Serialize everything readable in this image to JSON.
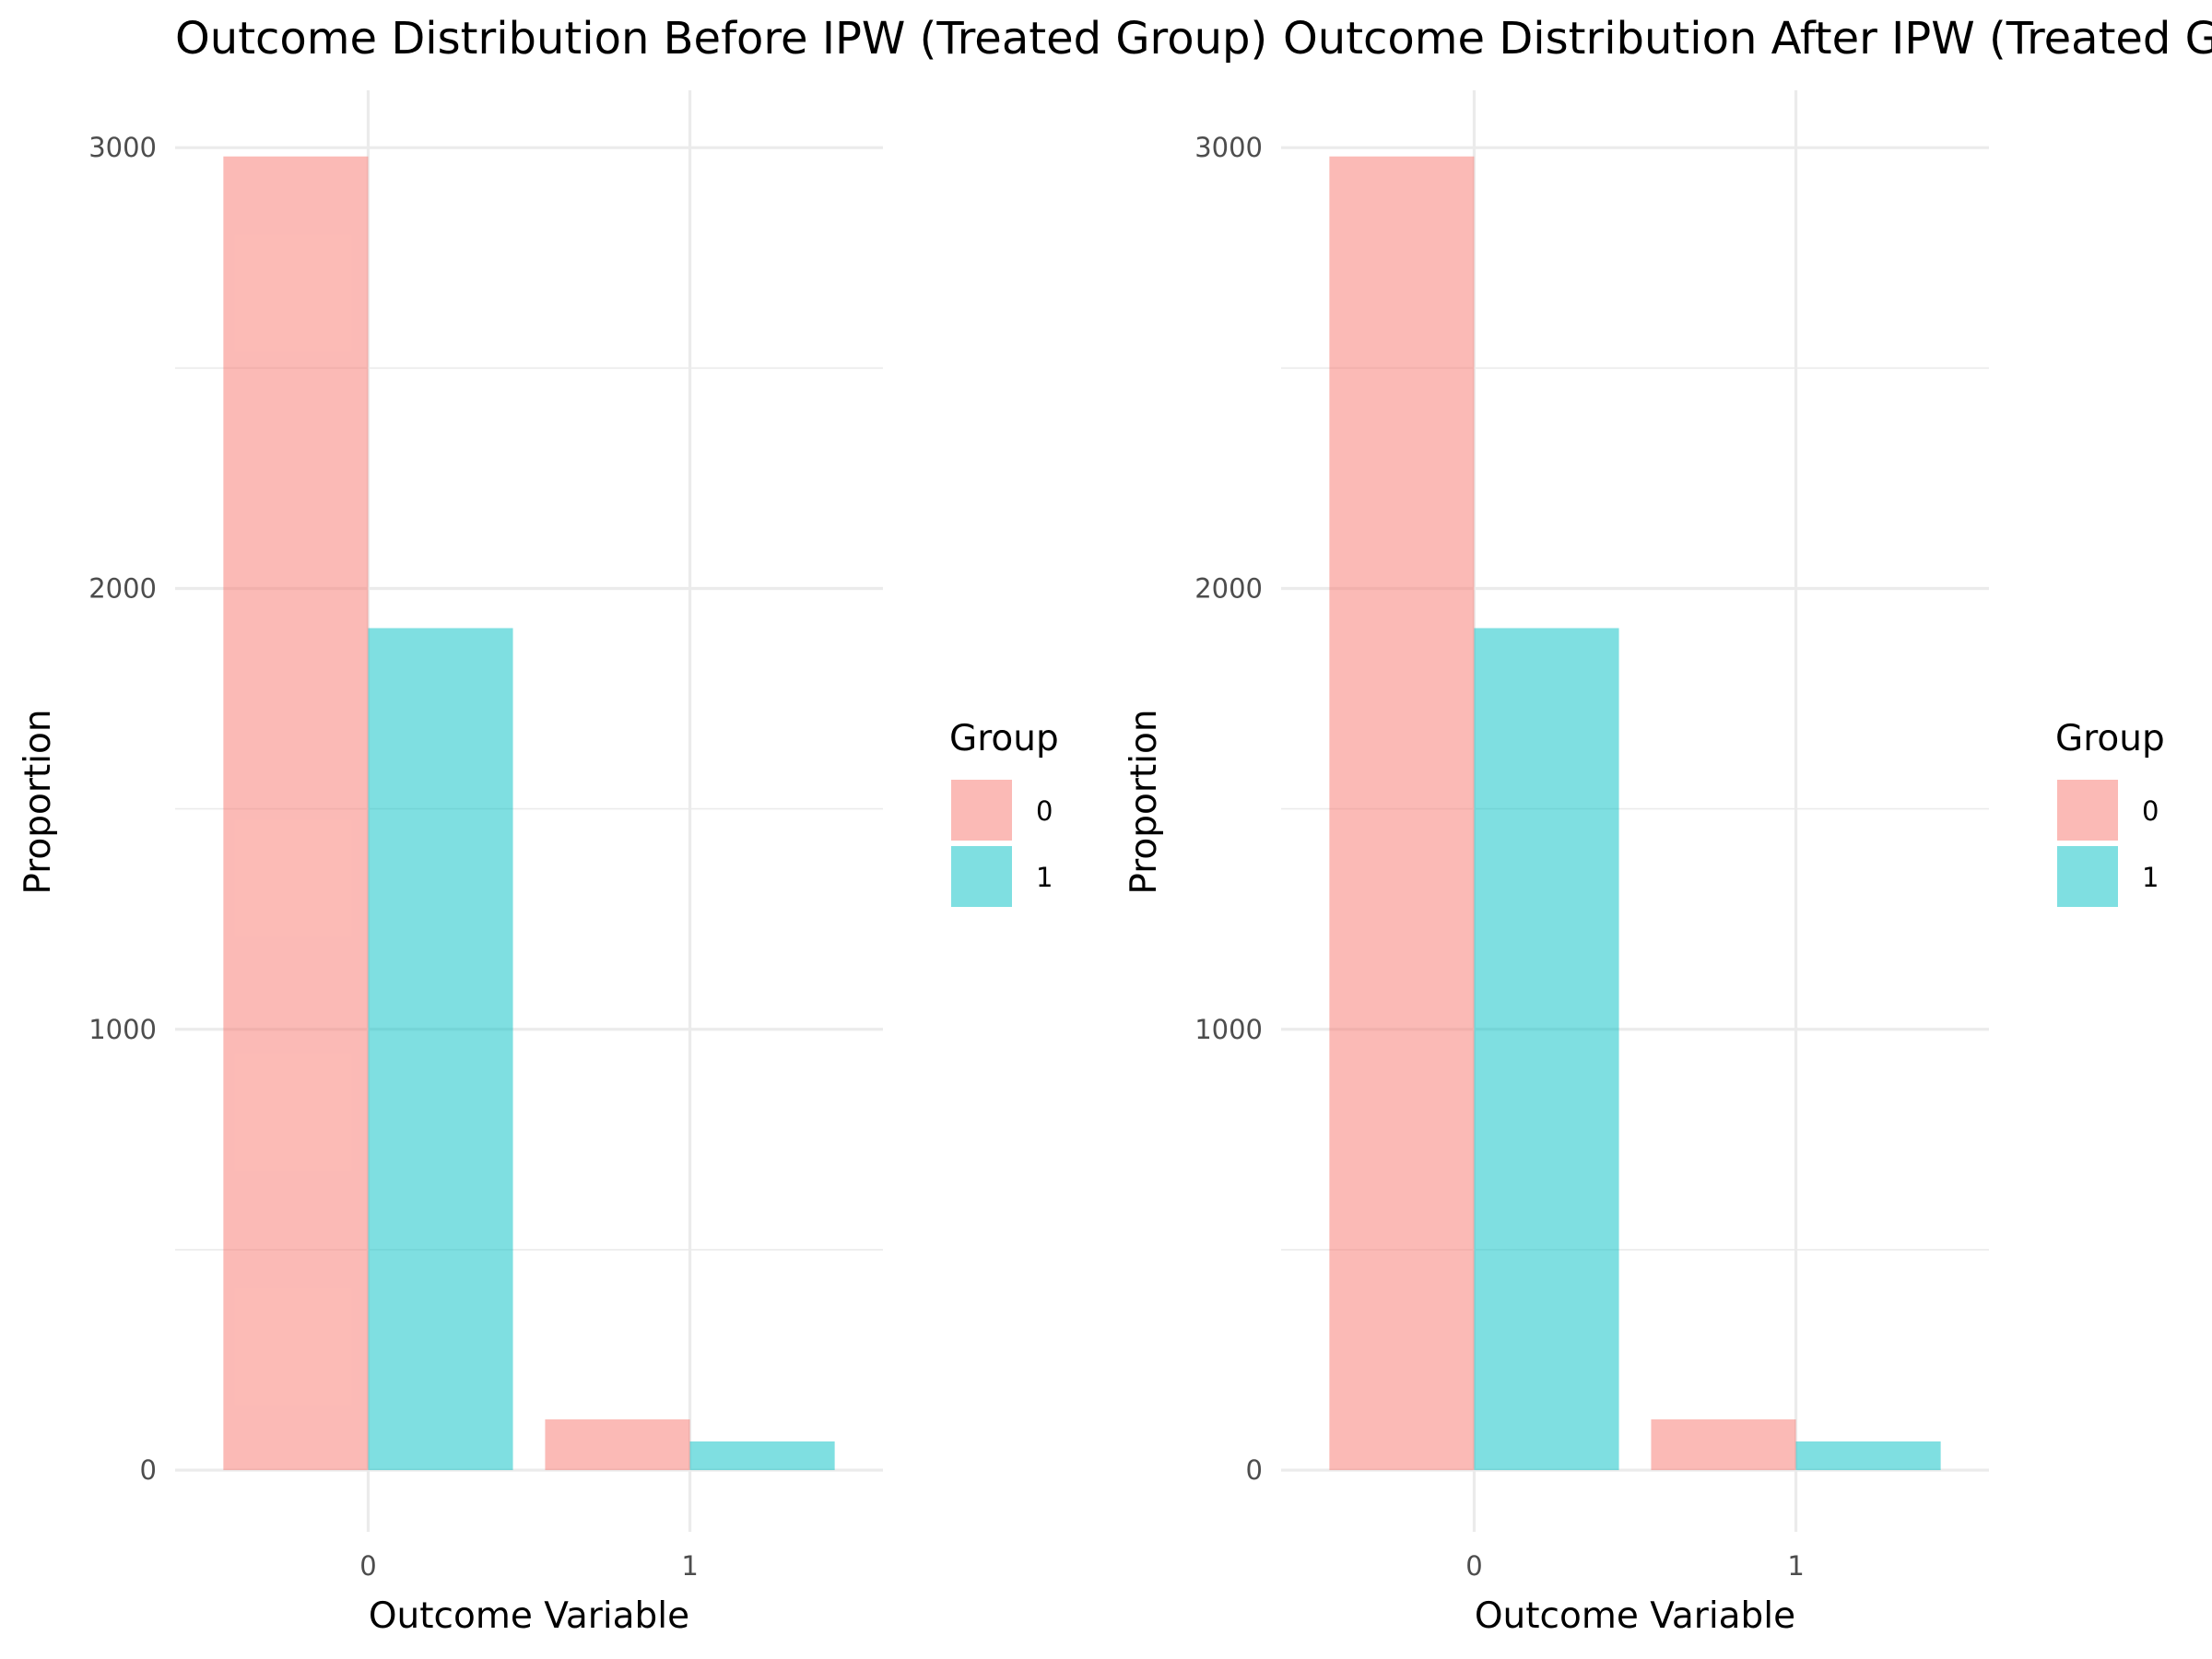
{
  "chart_data": [
    {
      "type": "bar",
      "title": "Outcome Distribution Before IPW (Treated Group)",
      "xlabel": "Outcome Variable",
      "ylabel": "Proportion",
      "categories": [
        "0",
        "1"
      ],
      "series": [
        {
          "name": "0",
          "values": [
            2980,
            115
          ],
          "color": "#F8766D"
        },
        {
          "name": "1",
          "values": [
            1910,
            65
          ],
          "color": "#00BFC4"
        }
      ],
      "ylim": [
        -140,
        3130
      ],
      "yticks": [
        0,
        1000,
        2000,
        3000
      ],
      "ytick_labels": [
        "0",
        "1000",
        "2000",
        "3000"
      ],
      "grid": true,
      "legend": {
        "title": "Group",
        "position": "right",
        "entries": [
          "0",
          "1"
        ]
      }
    },
    {
      "type": "bar",
      "title": "Outcome Distribution After IPW (Treated Group)",
      "xlabel": "Outcome Variable",
      "ylabel": "Proportion",
      "categories": [
        "0",
        "1"
      ],
      "series": [
        {
          "name": "0",
          "values": [
            2980,
            115
          ],
          "color": "#F8766D"
        },
        {
          "name": "1",
          "values": [
            1910,
            65
          ],
          "color": "#00BFC4"
        }
      ],
      "ylim": [
        -140,
        3130
      ],
      "yticks": [
        0,
        1000,
        2000,
        3000
      ],
      "ytick_labels": [
        "0",
        "1000",
        "2000",
        "3000"
      ],
      "grid": true,
      "legend": {
        "title": "Group",
        "position": "right",
        "entries": [
          "0",
          "1"
        ]
      }
    }
  ]
}
